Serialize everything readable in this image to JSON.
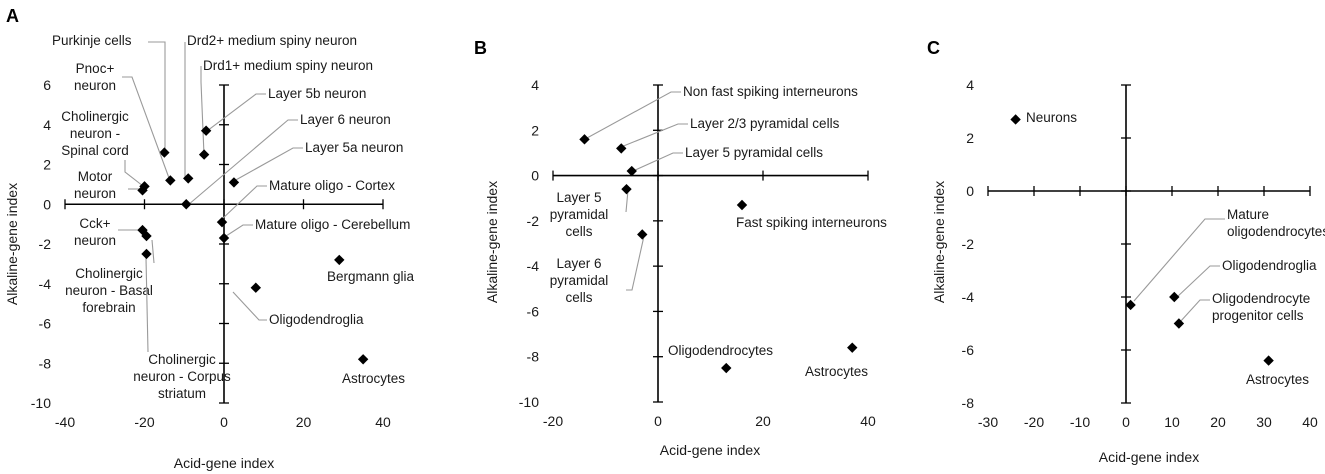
{
  "chart_data": [
    {
      "type": "scatter",
      "panel": "A",
      "xlabel": "Acid-gene index",
      "ylabel": "Alkaline-gene index",
      "xlim": [
        -40,
        40
      ],
      "ylim": [
        -10,
        6
      ],
      "xticks": [
        -40,
        -20,
        0,
        20,
        40
      ],
      "yticks": [
        6,
        4,
        2,
        0,
        -2,
        -4,
        -6,
        -8,
        -10
      ],
      "points": [
        {
          "label": "Purkinje cells",
          "x": -15,
          "y": 2.6
        },
        {
          "label": "Drd2+ medium spiny neuron",
          "x": -9,
          "y": 1.3
        },
        {
          "label": "Drd1+ medium spiny neuron",
          "x": -5,
          "y": 2.5
        },
        {
          "label": "Pnoc+\nneuron",
          "x": -13.5,
          "y": 1.2
        },
        {
          "label": "Layer 5b neuron",
          "x": -4.5,
          "y": 3.7
        },
        {
          "label": "Cholinergic\nneuron -\nSpinal cord",
          "x": -20,
          "y": 0.9
        },
        {
          "label": "Layer 6 neuron",
          "x": -9.5,
          "y": 0
        },
        {
          "label": "Layer 5a neuron",
          "x": 2.5,
          "y": 1.1
        },
        {
          "label": "Motor\nneuron",
          "x": -20.5,
          "y": 0.7
        },
        {
          "label": "Mature oligo - Cortex",
          "x": -0.5,
          "y": -0.9
        },
        {
          "label": "Cck+\nneuron",
          "x": -20.5,
          "y": -1.3
        },
        {
          "label": "Mature oligo - Cerebellum",
          "x": 0,
          "y": -1.7
        },
        {
          "label": "Cholinergic\nneuron - Basal\nforebrain",
          "x": -19.5,
          "y": -1.6
        },
        {
          "label": "Bergmann glia",
          "x": 29,
          "y": -2.8
        },
        {
          "label": "Cholinergic\nneuron - Corpus\nstriatum",
          "x": -19.5,
          "y": -2.5
        },
        {
          "label": "Oligodendroglia",
          "x": 8,
          "y": -4.2
        },
        {
          "label": "Astrocytes",
          "x": 35,
          "y": -7.8
        }
      ]
    },
    {
      "type": "scatter",
      "panel": "B",
      "xlabel": "Acid-gene index",
      "ylabel": "Alkaline-gene index",
      "xlim": [
        -20,
        40
      ],
      "ylim": [
        -10,
        4
      ],
      "xticks": [
        -20,
        0,
        20,
        40
      ],
      "yticks": [
        4,
        2,
        0,
        -2,
        -4,
        -6,
        -8,
        -10
      ],
      "points": [
        {
          "label": "Non fast spiking interneurons",
          "x": -14,
          "y": 1.6
        },
        {
          "label": "Layer 2/3 pyramidal cells",
          "x": -7,
          "y": 1.2
        },
        {
          "label": "Layer 5 pyramidal cells",
          "x": -5,
          "y": 0.2
        },
        {
          "label": "Layer 5\npyramidal\ncells",
          "x": -6,
          "y": -0.6
        },
        {
          "label": "Fast spiking interneurons",
          "x": 16,
          "y": -1.3
        },
        {
          "label": "Layer 6\npyramidal\ncells",
          "x": -3,
          "y": -2.6
        },
        {
          "label": "Oligodendrocytes",
          "x": 13,
          "y": -8.5
        },
        {
          "label": "Astrocytes",
          "x": 37,
          "y": -7.6
        }
      ]
    },
    {
      "type": "scatter",
      "panel": "C",
      "xlabel": "Acid-gene index",
      "ylabel": "Alkaline-gene index",
      "xlim": [
        -30,
        40
      ],
      "ylim": [
        -8,
        4
      ],
      "xticks": [
        -30,
        -20,
        -10,
        0,
        10,
        20,
        30,
        40
      ],
      "yticks": [
        4,
        2,
        0,
        -2,
        -4,
        -6,
        -8
      ],
      "points": [
        {
          "label": "Neurons",
          "x": -24,
          "y": 2.7
        },
        {
          "label": "Mature\noligodendrocytes",
          "x": 1,
          "y": -4.3
        },
        {
          "label": "Oligodendroglia",
          "x": 10.5,
          "y": -4.0
        },
        {
          "label": "Oligodendrocyte\nprogenitor cells",
          "x": 11.5,
          "y": -5.0
        },
        {
          "label": "Astrocytes",
          "x": 31,
          "y": -6.4
        }
      ]
    }
  ]
}
